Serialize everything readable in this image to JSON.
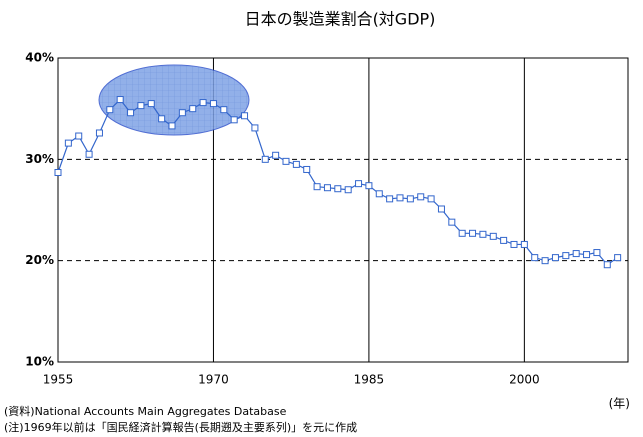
{
  "chart_data": {
    "type": "line",
    "title": "日本の製造業割合(対GDP)",
    "x_label": "(年)",
    "notes": [
      "(資料)National Accounts Main Aggregates  Database",
      "(注)1969年以前は「国民経済計算報告(長期遡及主要系列)」を元に作成"
    ],
    "x": [
      1955,
      1956,
      1957,
      1958,
      1959,
      1960,
      1961,
      1962,
      1963,
      1964,
      1965,
      1966,
      1967,
      1968,
      1969,
      1970,
      1971,
      1972,
      1973,
      1974,
      1975,
      1976,
      1977,
      1978,
      1979,
      1980,
      1981,
      1982,
      1983,
      1984,
      1985,
      1986,
      1987,
      1988,
      1989,
      1990,
      1991,
      1992,
      1993,
      1994,
      1995,
      1996,
      1997,
      1998,
      1999,
      2000,
      2001,
      2002,
      2003,
      2004,
      2005,
      2006,
      2007,
      2008,
      2009
    ],
    "series": [
      {
        "name": "製造業割合",
        "color": "#3366cc",
        "values": [
          28.7,
          31.6,
          32.3,
          30.5,
          32.6,
          34.9,
          35.9,
          34.6,
          35.3,
          35.5,
          34.0,
          33.3,
          34.6,
          35.0,
          35.6,
          35.5,
          34.9,
          33.9,
          34.3,
          33.1,
          30.0,
          30.4,
          29.8,
          29.5,
          29.0,
          27.3,
          27.2,
          27.1,
          27.0,
          27.6,
          27.4,
          26.6,
          26.1,
          26.2,
          26.1,
          26.3,
          26.1,
          25.1,
          23.8,
          22.7,
          22.7,
          22.6,
          22.4,
          22.0,
          21.6,
          21.6,
          20.3,
          20.0,
          20.3,
          20.5,
          20.7,
          20.6,
          20.8,
          19.6,
          20.3
        ]
      }
    ],
    "xlim": [
      1955,
      2010
    ],
    "xticks": [
      1955,
      1970,
      1985,
      2000
    ],
    "ylim": [
      10,
      40
    ],
    "yticks": [
      {
        "value": 10,
        "label": "10%"
      },
      {
        "value": 20,
        "label": "20%"
      },
      {
        "value": 30,
        "label": "30%"
      },
      {
        "value": 40,
        "label": "40%"
      }
    ],
    "grid": true
  }
}
